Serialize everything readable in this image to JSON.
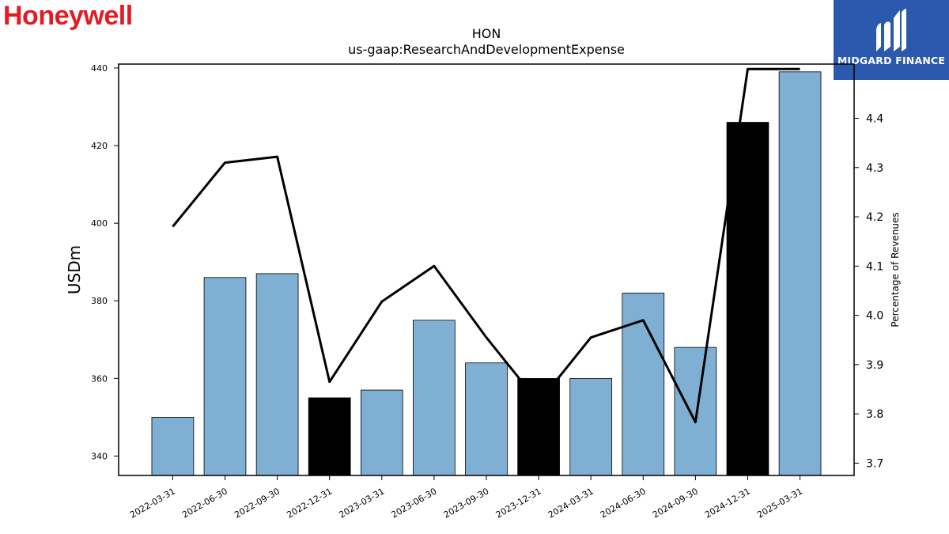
{
  "logos": {
    "left_text": "Honeywell",
    "left_color": "#e31b23",
    "right_text": "MIDGARD FINANCE",
    "right_bg": "#2b59ad"
  },
  "chart_data": {
    "type": "bar",
    "title": "HON",
    "subtitle": "us-gaap:ResearchAndDevelopmentExpense",
    "ylabel": "USDm",
    "y2label": "Percentage of Revenues",
    "ylim": [
      335,
      441
    ],
    "y2lim": [
      3.675,
      4.51
    ],
    "yticks": [
      340,
      360,
      380,
      400,
      420,
      440
    ],
    "y2ticks": [
      3.7,
      3.8,
      3.9,
      4.0,
      4.1,
      4.2,
      4.3,
      4.4
    ],
    "categories": [
      "2022-03-31",
      "2022-06-30",
      "2022-09-30",
      "2022-12-31",
      "2023-03-31",
      "2023-06-30",
      "2023-09-30",
      "2023-12-31",
      "2024-03-31",
      "2024-06-30",
      "2024-09-30",
      "2024-12-31",
      "2025-03-31"
    ],
    "values": [
      350,
      386,
      387,
      355,
      357,
      375,
      364,
      360,
      360,
      382,
      368,
      426,
      439
    ],
    "highlight": [
      false,
      false,
      false,
      true,
      false,
      false,
      false,
      true,
      false,
      false,
      false,
      true,
      false
    ],
    "bar_color": "#7fb0d3",
    "highlight_color": "#000000",
    "line": {
      "values": [
        4.18,
        4.31,
        4.322,
        3.865,
        4.028,
        4.1,
        3.955,
        3.823,
        3.955,
        3.99,
        3.783,
        4.5,
        4.5
      ],
      "color": "#000000"
    },
    "grid": false,
    "legend": "none"
  }
}
